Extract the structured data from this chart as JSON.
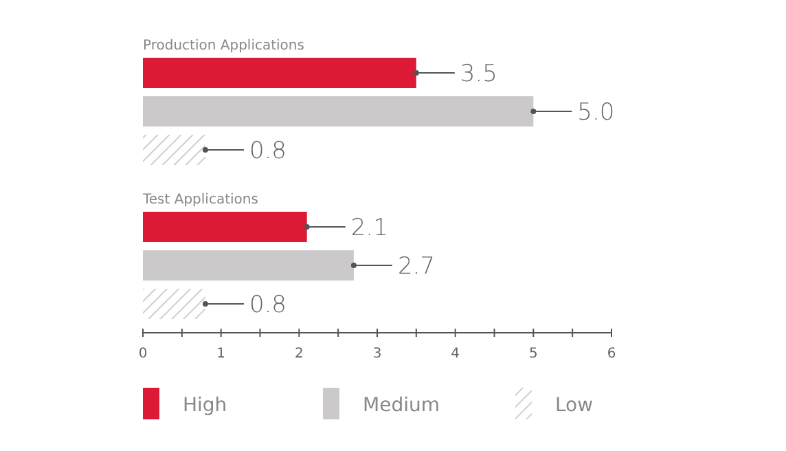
{
  "chart_data": {
    "type": "bar",
    "orientation": "horizontal",
    "categories": [
      "Production Applications",
      "Test Applications"
    ],
    "series": [
      {
        "name": "High",
        "color": "#dc1a35",
        "values": [
          3.5,
          2.1
        ],
        "value_labels": [
          "3.5",
          "2.1"
        ]
      },
      {
        "name": "Medium",
        "color": "#cbc9ca",
        "values": [
          5.0,
          2.7
        ],
        "value_labels": [
          "5.0",
          "2.7"
        ]
      },
      {
        "name": "Low",
        "color": "#cfcfcf",
        "values": [
          0.8,
          0.8
        ],
        "value_labels": [
          "0.8",
          "0.8"
        ]
      }
    ],
    "xlim": [
      0,
      6
    ],
    "xticks": [
      0,
      {
        "value": 0.5,
        "label": null
      },
      1,
      {
        "value": 1.5,
        "label": null
      },
      2,
      {
        "value": 2.5,
        "label": null
      },
      3,
      {
        "value": 3.5,
        "label": null
      },
      4,
      {
        "value": 4.5,
        "label": null
      },
      5,
      {
        "value": 5.5,
        "label": null
      },
      6
    ],
    "grid": false,
    "legend": "bottom"
  }
}
